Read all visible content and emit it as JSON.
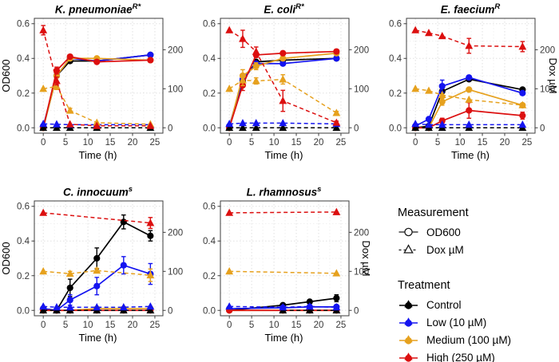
{
  "axes": {
    "x_label": "Time (h)",
    "x_ticks": [
      {
        "v": 0,
        "label": "0"
      },
      {
        "v": 5,
        "label": "5"
      },
      {
        "v": 10,
        "label": "10"
      },
      {
        "v": 15,
        "label": "15"
      },
      {
        "v": 20,
        "label": "20"
      },
      {
        "v": 25,
        "label": "25"
      }
    ],
    "x_range": [
      -2,
      26.8
    ],
    "y_left_label": "OD600",
    "y_left_ticks": [
      {
        "v": 0,
        "label": "0.0"
      },
      {
        "v": 0.2,
        "label": "0.2"
      },
      {
        "v": 0.4,
        "label": "0.4"
      },
      {
        "v": 0.6,
        "label": "0.6"
      }
    ],
    "y_range_od": [
      -0.031,
      0.631
    ],
    "y_right_label": "Dox µM",
    "y_right_ticks": [
      {
        "v": 0,
        "label": "0"
      },
      {
        "v": 100,
        "label": "100"
      },
      {
        "v": 200,
        "label": "200"
      }
    ],
    "dox_to_od": 0.00225,
    "grid": true
  },
  "style": {
    "colors": {
      "control": "#000000",
      "low": "#1414f0",
      "medium": "#e6a11e",
      "high": "#dc0f0f"
    },
    "grid_minor": "#ededed",
    "grid_major": "#e0e0e0",
    "border": "#3c3c3c",
    "tick_text": "#383838"
  },
  "chart_data": [
    {
      "type": "line",
      "title": "K. pneumoniae",
      "title_sup": "R*",
      "series": [
        {
          "treatment": "control",
          "measure": "od600",
          "x": [
            0,
            3,
            6,
            12,
            24
          ],
          "y": [
            0.0,
            0.3,
            0.385,
            0.385,
            0.42
          ]
        },
        {
          "treatment": "low",
          "measure": "od600",
          "x": [
            0,
            3,
            6,
            12,
            24
          ],
          "y": [
            0.01,
            0.3,
            0.4,
            0.385,
            0.42
          ]
        },
        {
          "treatment": "medium",
          "measure": "od600",
          "x": [
            0,
            3,
            6,
            12,
            24
          ],
          "y": [
            0.0,
            0.3,
            0.4,
            0.4,
            0.39
          ]
        },
        {
          "treatment": "high",
          "measure": "od600",
          "x": [
            0,
            3,
            6,
            12,
            24
          ],
          "y": [
            0.0,
            0.33,
            0.41,
            0.38,
            0.39
          ],
          "err": [
            0.01,
            0.02,
            0.01,
            0,
            0
          ]
        },
        {
          "treatment": "control",
          "measure": "dox",
          "x": [
            0,
            3,
            6,
            12,
            24
          ],
          "y": [
            0,
            0,
            0,
            0,
            0
          ]
        },
        {
          "treatment": "low",
          "measure": "dox",
          "x": [
            0,
            3,
            6,
            12,
            24
          ],
          "y": [
            10,
            9,
            8,
            8,
            8
          ]
        },
        {
          "treatment": "medium",
          "measure": "dox",
          "x": [
            0,
            3,
            6,
            12,
            24
          ],
          "y": [
            100,
            106,
            44,
            13,
            9
          ],
          "err": [
            0,
            8,
            6,
            0,
            0
          ]
        },
        {
          "treatment": "high",
          "measure": "dox",
          "x": [
            0,
            3,
            6,
            12,
            24
          ],
          "y": [
            250,
            120,
            9,
            5,
            5
          ],
          "err": [
            12,
            10,
            0,
            0,
            0
          ]
        }
      ]
    },
    {
      "type": "line",
      "title": "E. coli",
      "title_sup": "R*",
      "series": [
        {
          "treatment": "control",
          "measure": "od600",
          "x": [
            0,
            3,
            6,
            12,
            24
          ],
          "y": [
            0.0,
            0.27,
            0.38,
            0.39,
            0.4
          ]
        },
        {
          "treatment": "low",
          "measure": "od600",
          "x": [
            0,
            3,
            6,
            12,
            24
          ],
          "y": [
            0.01,
            0.28,
            0.37,
            0.37,
            0.4
          ]
        },
        {
          "treatment": "medium",
          "measure": "od600",
          "x": [
            0,
            3,
            6,
            12,
            24
          ],
          "y": [
            0.0,
            0.3,
            0.355,
            0.4,
            0.43
          ],
          "err": [
            0,
            0.035,
            0.02,
            0,
            0.01
          ]
        },
        {
          "treatment": "high",
          "measure": "od600",
          "x": [
            0,
            3,
            6,
            12,
            24
          ],
          "y": [
            0.0,
            0.245,
            0.42,
            0.43,
            0.44
          ],
          "err": [
            0,
            0.03,
            0.015,
            0.01,
            0
          ]
        },
        {
          "treatment": "control",
          "measure": "dox",
          "x": [
            0,
            3,
            6,
            12,
            24
          ],
          "y": [
            0,
            0,
            0,
            0,
            0
          ]
        },
        {
          "treatment": "low",
          "measure": "dox",
          "x": [
            0,
            3,
            6,
            12,
            24
          ],
          "y": [
            10,
            12,
            12,
            12,
            10
          ]
        },
        {
          "treatment": "medium",
          "measure": "dox",
          "x": [
            0,
            3,
            6,
            12,
            24
          ],
          "y": [
            100,
            122,
            120,
            124,
            38
          ],
          "err": [
            0,
            14,
            8,
            12,
            4
          ]
        },
        {
          "treatment": "high",
          "measure": "dox",
          "x": [
            0,
            3,
            6,
            12,
            24
          ],
          "y": [
            250,
            228,
            195,
            69,
            13
          ],
          "err": [
            0,
            22,
            12,
            27,
            4
          ]
        }
      ]
    },
    {
      "type": "line",
      "title": "E. faecium",
      "title_sup": "R",
      "series": [
        {
          "treatment": "control",
          "measure": "od600",
          "x": [
            0,
            3,
            6,
            12,
            24
          ],
          "y": [
            0.0,
            0.01,
            0.21,
            0.28,
            0.22
          ]
        },
        {
          "treatment": "low",
          "measure": "od600",
          "x": [
            0,
            3,
            6,
            12,
            24
          ],
          "y": [
            0.01,
            0.05,
            0.24,
            0.29,
            0.2
          ],
          "err": [
            0,
            0.01,
            0.035,
            0.01,
            0.01
          ]
        },
        {
          "treatment": "medium",
          "measure": "od600",
          "x": [
            0,
            3,
            6,
            12,
            24
          ],
          "y": [
            0.0,
            0.0,
            0.15,
            0.22,
            0.13
          ],
          "err": [
            0,
            0,
            0.02,
            0.01,
            0.01
          ]
        },
        {
          "treatment": "high",
          "measure": "od600",
          "x": [
            0,
            3,
            6,
            12,
            24
          ],
          "y": [
            0.0,
            0.0,
            0.04,
            0.1,
            0.07
          ],
          "err": [
            0,
            0,
            0.015,
            0.045,
            0.02
          ]
        },
        {
          "treatment": "control",
          "measure": "dox",
          "x": [
            0,
            3,
            6,
            12,
            24
          ],
          "y": [
            0,
            0,
            0,
            0,
            0
          ]
        },
        {
          "treatment": "low",
          "measure": "dox",
          "x": [
            0,
            3,
            6,
            12,
            24
          ],
          "y": [
            10,
            8,
            8,
            8,
            8
          ]
        },
        {
          "treatment": "medium",
          "measure": "dox",
          "x": [
            0,
            3,
            6,
            12,
            24
          ],
          "y": [
            100,
            95,
            84,
            72,
            58
          ]
        },
        {
          "treatment": "high",
          "measure": "dox",
          "x": [
            0,
            3,
            6,
            12,
            24
          ],
          "y": [
            250,
            243,
            235,
            210,
            208
          ],
          "err": [
            0,
            0,
            0,
            19,
            13
          ]
        }
      ]
    },
    {
      "type": "line",
      "title": "C. innocuum",
      "title_sup": "s",
      "series": [
        {
          "treatment": "control",
          "measure": "od600",
          "x": [
            0,
            3,
            6,
            12,
            18,
            24
          ],
          "y": [
            0.01,
            0.0,
            0.13,
            0.3,
            0.51,
            0.43
          ],
          "err": [
            0,
            0,
            0.05,
            0.06,
            0.04,
            0.03
          ]
        },
        {
          "treatment": "low",
          "measure": "od600",
          "x": [
            0,
            3,
            6,
            12,
            18,
            24
          ],
          "y": [
            0.01,
            0.0,
            0.06,
            0.14,
            0.26,
            0.21
          ],
          "err": [
            0,
            0,
            0.03,
            0.05,
            0.05,
            0.06
          ]
        },
        {
          "treatment": "medium",
          "measure": "od600",
          "x": [
            0,
            3,
            6,
            12,
            18,
            24
          ],
          "y": [
            0.0,
            0.0,
            0.0,
            0.01,
            0.01,
            0.01
          ]
        },
        {
          "treatment": "high",
          "measure": "od600",
          "x": [
            0,
            3,
            6,
            12,
            18,
            24
          ],
          "y": [
            0.0,
            0.0,
            0.0,
            0.0,
            0.0,
            0.0
          ]
        },
        {
          "treatment": "control",
          "measure": "dox",
          "x": [
            0,
            3,
            6,
            12,
            18,
            24
          ],
          "y": [
            0,
            0,
            0,
            0,
            0,
            0
          ]
        },
        {
          "treatment": "low",
          "measure": "dox",
          "x": [
            0,
            3,
            6,
            12,
            18,
            24
          ],
          "y": [
            10,
            8,
            8,
            8,
            8,
            10
          ]
        },
        {
          "treatment": "medium",
          "measure": "dox",
          "x": [
            0,
            6,
            12,
            24
          ],
          "y": [
            100,
            94,
            102,
            90
          ],
          "err": [
            0,
            6,
            6,
            16
          ]
        },
        {
          "treatment": "high",
          "measure": "dox",
          "x": [
            0,
            24
          ],
          "y": [
            250,
            224
          ],
          "err": [
            0,
            14
          ]
        }
      ]
    },
    {
      "type": "line",
      "title": "L. rhamnosus",
      "title_sup": "s",
      "series": [
        {
          "treatment": "control",
          "measure": "od600",
          "x": [
            0,
            12,
            18,
            24
          ],
          "y": [
            0.0,
            0.03,
            0.05,
            0.07
          ],
          "err": [
            0,
            0,
            0,
            0.02
          ]
        },
        {
          "treatment": "low",
          "measure": "od600",
          "x": [
            0,
            12,
            18,
            24
          ],
          "y": [
            0.01,
            0.015,
            0.02,
            0.02
          ]
        },
        {
          "treatment": "medium",
          "measure": "od600",
          "x": [
            0,
            12,
            18,
            24
          ],
          "y": [
            0.0,
            0.0,
            0.0,
            0.0
          ]
        },
        {
          "treatment": "high",
          "measure": "od600",
          "x": [
            0,
            12,
            18,
            24
          ],
          "y": [
            0.0,
            0.0,
            0.0,
            0.0
          ]
        },
        {
          "treatment": "control",
          "measure": "dox",
          "x": [
            12,
            18,
            24
          ],
          "y": [
            0,
            0,
            0
          ]
        },
        {
          "treatment": "low",
          "measure": "dox",
          "x": [
            0,
            12,
            18,
            24
          ],
          "y": [
            10,
            8,
            10,
            8
          ]
        },
        {
          "treatment": "medium",
          "measure": "dox",
          "x": [
            0,
            24
          ],
          "y": [
            100,
            95
          ]
        },
        {
          "treatment": "high",
          "measure": "dox",
          "x": [
            0,
            24
          ],
          "y": [
            250,
            252
          ]
        }
      ]
    }
  ],
  "legend": {
    "measurement": {
      "title": "Measurement",
      "items": [
        {
          "key": "od600",
          "label": "OD600"
        },
        {
          "key": "dox",
          "label": "Dox µM"
        }
      ]
    },
    "treatment": {
      "title": "Treatment",
      "items": [
        {
          "key": "control",
          "label": "Control"
        },
        {
          "key": "low",
          "label": "Low (10 µM)"
        },
        {
          "key": "medium",
          "label": "Medium (100 µM)"
        },
        {
          "key": "high",
          "label": "High (250 µM)"
        }
      ]
    }
  }
}
